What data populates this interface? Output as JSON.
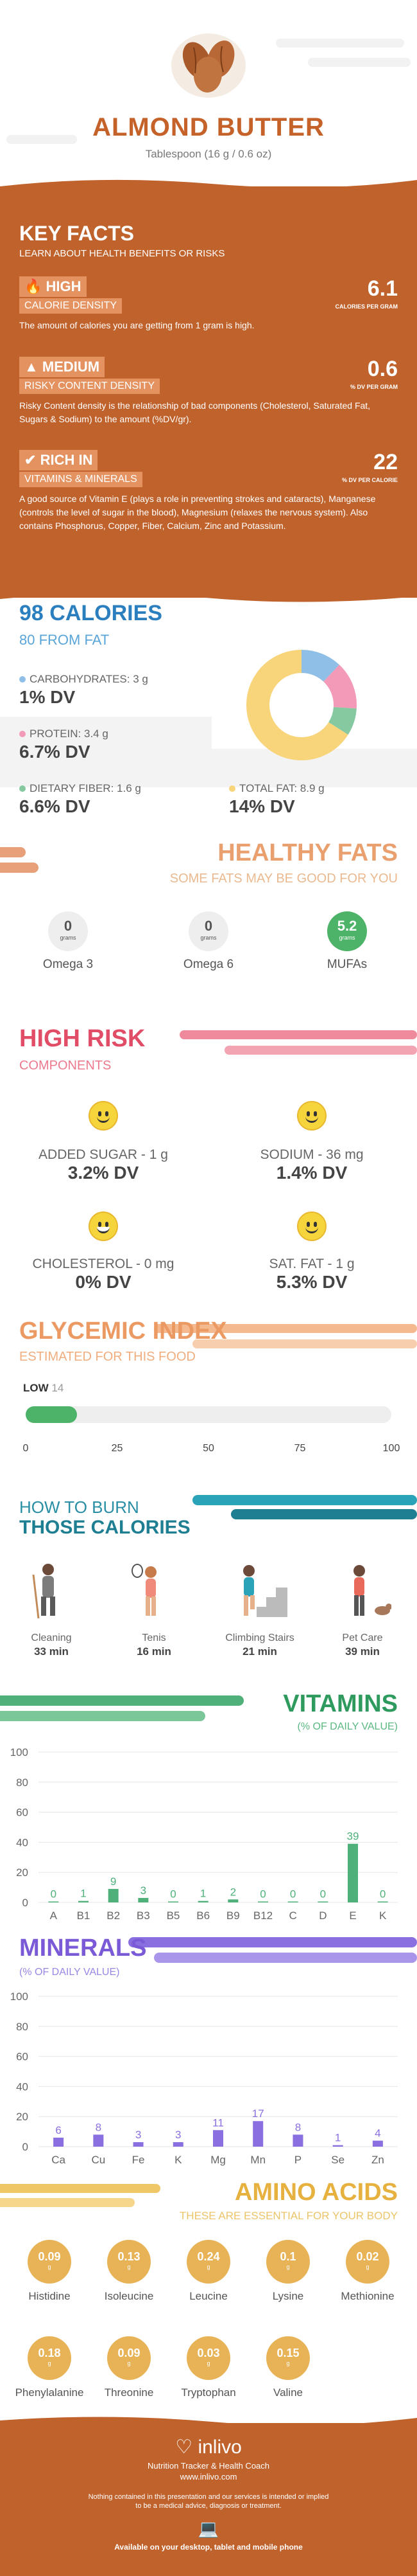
{
  "header": {
    "title": "ALMOND BUTTER",
    "subtitle": "Tablespoon (16 g / 0.6 oz)"
  },
  "key_facts": {
    "title": "KEY FACTS",
    "subtitle": "LEARN ABOUT HEALTH BENEFITS OR RISKS",
    "items": [
      {
        "level": "HIGH",
        "name": "CALORIE DENSITY",
        "value": "6.1",
        "unit": "CALORIES PER GRAM",
        "desc": "The amount of calories you are getting from 1 gram is high."
      },
      {
        "level": "MEDIUM",
        "name": "RISKY CONTENT DENSITY",
        "value": "0.6",
        "unit": "% DV PER GRAM",
        "desc": "Risky Content density is the relationship of bad components (Cholesterol, Saturated Fat, Sugars & Sodium) to the amount (%DV/gr)."
      },
      {
        "level": "RICH IN",
        "name": "VITAMINS & MINERALS",
        "value": "22",
        "unit": "% DV PER CALORIE",
        "desc": "A good source of Vitamin E (plays a role in preventing strokes and cataracts), Manganese (controls the level of sugar in the blood), Magnesium (relaxes the nervous system). Also contains Phosphorus, Copper, Fiber, Calcium, Zinc and Potassium."
      }
    ]
  },
  "calories": {
    "title": "98 CALORIES",
    "from_fat": "80 FROM FAT",
    "nutrients": [
      {
        "label": "CARBOHYDRATES: 3 g",
        "dv": "1% DV",
        "color": "#8fbfe6"
      },
      {
        "label": "PROTEIN: 3.4 g",
        "dv": "6.7% DV",
        "color": "#f39ab8"
      },
      {
        "label": "DIETARY FIBER: 1.6 g",
        "dv": "6.6% DV",
        "color": "#86c8a0"
      },
      {
        "label": "TOTAL FAT: 8.9 g",
        "dv": "14% DV",
        "color": "#f8d47a"
      }
    ],
    "donut": [
      {
        "name": "carbs",
        "value": 12,
        "color": "#8fbfe6"
      },
      {
        "name": "protein",
        "value": 14,
        "color": "#f39ab8"
      },
      {
        "name": "fiber",
        "value": 8,
        "color": "#86c8a0"
      },
      {
        "name": "fat",
        "value": 66,
        "color": "#f8d47a"
      }
    ]
  },
  "healthy_fats": {
    "title": "HEALTHY FATS",
    "subtitle": "SOME FATS MAY BE GOOD FOR YOU",
    "items": [
      {
        "name": "Omega 3",
        "value": "0",
        "unit": "grams"
      },
      {
        "name": "Omega 6",
        "value": "0",
        "unit": "grams"
      },
      {
        "name": "MUFAs",
        "value": "5.2",
        "unit": "grams"
      }
    ]
  },
  "high_risk": {
    "title": "HIGH RISK",
    "subtitle": "COMPONENTS",
    "items": [
      {
        "label": "ADDED SUGAR - 1 g",
        "dv": "3.2% DV"
      },
      {
        "label": "SODIUM - 36 mg",
        "dv": "1.4% DV"
      },
      {
        "label": "CHOLESTEROL - 0 mg",
        "dv": "0% DV"
      },
      {
        "label": "SAT. FAT - 1 g",
        "dv": "5.3% DV"
      }
    ]
  },
  "glycemic": {
    "title": "GLYCEMIC INDEX",
    "subtitle": "ESTIMATED FOR THIS FOOD",
    "level": "LOW",
    "value": "14",
    "fraction": 0.14,
    "ticks": [
      "0",
      "25",
      "50",
      "75",
      "100"
    ]
  },
  "burn": {
    "title1": "HOW TO BURN",
    "title2": "THOSE CALORIES",
    "items": [
      {
        "name": "Cleaning",
        "time": "33 min"
      },
      {
        "name": "Tenis",
        "time": "16 min"
      },
      {
        "name": "Climbing Stairs",
        "time": "21 min"
      },
      {
        "name": "Pet Care",
        "time": "39 min"
      }
    ]
  },
  "vitamins": {
    "title": "VITAMINS",
    "subtitle": "(% OF DAILY VALUE)",
    "chart_data": {
      "type": "bar",
      "categories": [
        "A",
        "B1",
        "B2",
        "B3",
        "B5",
        "B6",
        "B9",
        "B12",
        "C",
        "D",
        "E",
        "K"
      ],
      "values": [
        0,
        1,
        9,
        3,
        0,
        1,
        2,
        0,
        0,
        0,
        39,
        0
      ],
      "ylim": [
        0,
        100
      ],
      "yticks": [
        "0",
        "20",
        "40",
        "60",
        "80",
        "100"
      ],
      "color": "#4fb07a"
    }
  },
  "minerals": {
    "title": "MINERALS",
    "subtitle": "(% OF DAILY VALUE)",
    "chart_data": {
      "type": "bar",
      "categories": [
        "Ca",
        "Cu",
        "Fe",
        "K",
        "Mg",
        "Mn",
        "P",
        "Se",
        "Zn"
      ],
      "values": [
        6,
        8,
        3,
        3,
        11,
        17,
        8,
        1,
        4
      ],
      "ylim": [
        0,
        100
      ],
      "yticks": [
        "0",
        "20",
        "40",
        "60",
        "80",
        "100"
      ],
      "color": "#8a6fe0"
    }
  },
  "amino": {
    "title": "AMINO ACIDS",
    "subtitle": "THESE ARE ESSENTIAL FOR YOUR BODY",
    "unit": "g",
    "items": [
      {
        "name": "Histidine",
        "value": "0.09"
      },
      {
        "name": "Isoleucine",
        "value": "0.13"
      },
      {
        "name": "Leucine",
        "value": "0.24"
      },
      {
        "name": "Lysine",
        "value": "0.1"
      },
      {
        "name": "Methionine",
        "value": "0.02"
      },
      {
        "name": "Phenylalanine",
        "value": "0.18"
      },
      {
        "name": "Threonine",
        "value": "0.09"
      },
      {
        "name": "Tryptophan",
        "value": "0.03"
      },
      {
        "name": "Valine",
        "value": "0.15"
      }
    ]
  },
  "footer": {
    "brand": "inlivo",
    "tagline": "Nutrition Tracker & Health Coach",
    "url": "www.inlivo.com",
    "disclaimer1": "Nothing contained in this presentation and our services is intended or implied",
    "disclaimer2": "to be a medical advice, diagnosis or treatment.",
    "available": "Available on your desktop, tablet and mobile phone"
  }
}
